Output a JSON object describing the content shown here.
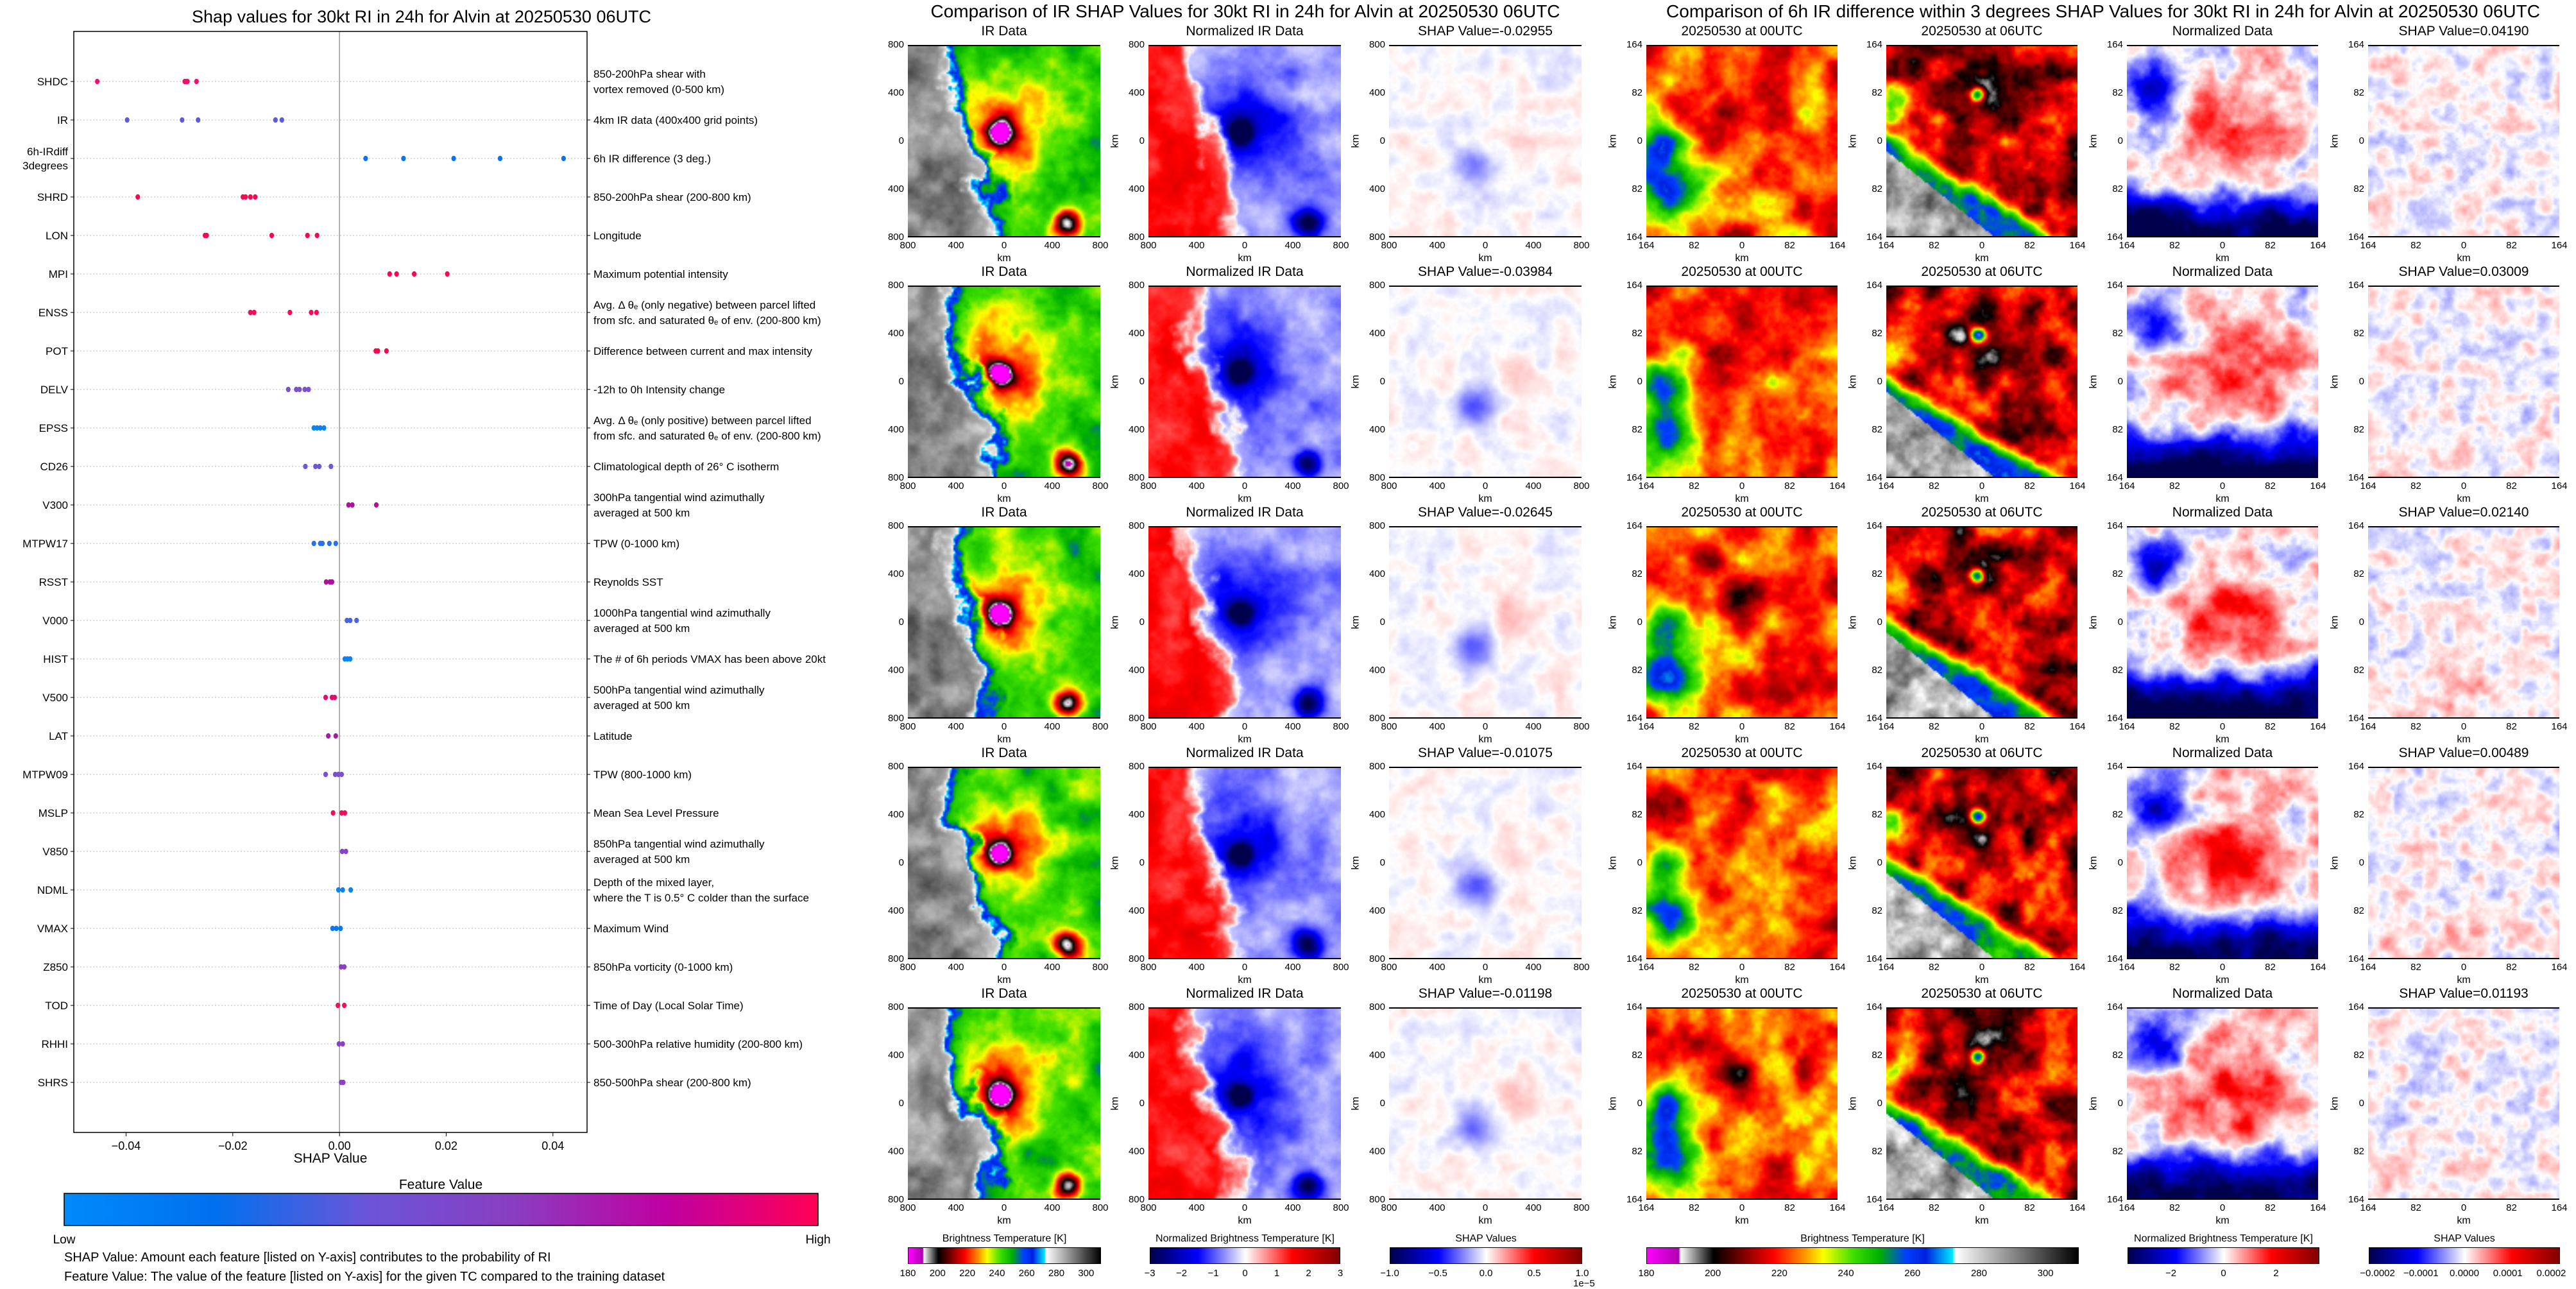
{
  "chart_data": {
    "type": "scatter",
    "title": "Shap values for 30kt RI in 24h for Alvin at 20250530 06UTC",
    "xlabel": "SHAP Value",
    "xlim": [
      -0.0498,
      0.0464
    ],
    "xticks": [
      -0.04,
      -0.02,
      0.0,
      0.02,
      0.04
    ],
    "xtick_labels": [
      "−0.04",
      "−0.02",
      "0.00",
      "0.02",
      "0.04"
    ],
    "grid": "horizontal dotted",
    "features": [
      {
        "code": [
          "SHDC"
        ],
        "description": [
          "850-200hPa shear with",
          "vortex removed (0-500 km)"
        ],
        "color": "#f0106a",
        "shap": [
          -0.0454,
          -0.029,
          -0.0287,
          -0.0285,
          -0.0268
        ]
      },
      {
        "code": [
          "IR"
        ],
        "description": [
          "4km IR data (400x400 grid points)"
        ],
        "color": "#5a5ce0",
        "shap": [
          -0.0398,
          -0.0295,
          -0.0265,
          -0.012,
          -0.0108
        ]
      },
      {
        "code": [
          "6h-IRdiff",
          "3degrees"
        ],
        "description": [
          "6h IR difference (3 deg.)"
        ],
        "color": "#0a74f0",
        "shap": [
          0.0049,
          0.012,
          0.0214,
          0.0301,
          0.042
        ]
      },
      {
        "code": [
          "SHRD"
        ],
        "description": [
          "850-200hPa shear (200-800 km)"
        ],
        "color": "#f8084e",
        "shap": [
          -0.0378,
          -0.0181,
          -0.0176,
          -0.0167,
          -0.0158
        ]
      },
      {
        "code": [
          "LON"
        ],
        "description": [
          "Longitude"
        ],
        "color": "#fa0650",
        "shap": [
          -0.0252,
          -0.0249,
          -0.0127,
          -0.006,
          -0.0042
        ]
      },
      {
        "code": [
          "MPI"
        ],
        "description": [
          "Maximum potential intensity"
        ],
        "color": "#fa0650",
        "shap": [
          0.0094,
          0.0107,
          0.014,
          0.0202
        ]
      },
      {
        "code": [
          "ENSS"
        ],
        "description": [
          "Avg. Δ θₑ (only negative) between parcel lifted",
          "from sfc. and saturated θₑ of env. (200-800 km)"
        ],
        "color": "#f80a58",
        "shap": [
          -0.0167,
          -0.016,
          -0.0093,
          -0.0053,
          -0.0043
        ]
      },
      {
        "code": [
          "POT"
        ],
        "description": [
          "Difference between current and max intensity"
        ],
        "color": "#fa0650",
        "shap": [
          0.0068,
          0.0072,
          0.0088
        ]
      },
      {
        "code": [
          "DELV"
        ],
        "description": [
          "-12h to 0h Intensity change"
        ],
        "color": "#7a4fd0",
        "shap": [
          -0.0096,
          -0.0081,
          -0.0075,
          -0.0065,
          -0.0058
        ]
      },
      {
        "code": [
          "EPSS"
        ],
        "description": [
          "Avg. Δ θₑ (only positive) between parcel lifted",
          "from sfc. and saturated θₑ of env. (200-800 km)"
        ],
        "color": "#0a84f5",
        "shap": [
          -0.0048,
          -0.0042,
          -0.0036,
          -0.0029
        ]
      },
      {
        "code": [
          "CD26"
        ],
        "description": [
          "Climatological depth of 26° C isotherm"
        ],
        "color": "#6a5ad8",
        "shap": [
          -0.0064,
          -0.0045,
          -0.0038,
          -0.0016
        ]
      },
      {
        "code": [
          "V300"
        ],
        "description": [
          "300hPa tangential wind azimuthally",
          "averaged at 500 km"
        ],
        "color": "#b0109a",
        "shap": [
          0.0017,
          0.0024,
          0.0069
        ]
      },
      {
        "code": [
          "MTPW17"
        ],
        "description": [
          "TPW (0-1000 km)"
        ],
        "color": "#2a70e8",
        "shap": [
          -0.0048,
          -0.0036,
          -0.0032,
          -0.0019,
          -0.0007
        ]
      },
      {
        "code": [
          "RSST"
        ],
        "description": [
          "Reynolds SST"
        ],
        "color": "#b0109a",
        "shap": [
          -0.0025,
          -0.0018,
          -0.0014
        ]
      },
      {
        "code": [
          "V000"
        ],
        "description": [
          "1000hPa tangential wind azimuthally",
          "averaged at 500 km"
        ],
        "color": "#4a62dc",
        "shap": [
          0.0014,
          0.002,
          0.0032
        ]
      },
      {
        "code": [
          "HIST"
        ],
        "description": [
          "The # of 6h periods VMAX has been above 20kt"
        ],
        "color": "#0a84f5",
        "shap": [
          0.001,
          0.0015,
          0.002
        ]
      },
      {
        "code": [
          "V500"
        ],
        "description": [
          "500hPa tangential wind azimuthally",
          "averaged at 500 km"
        ],
        "color": "#e0106a",
        "shap": [
          -0.0026,
          -0.0014,
          -0.0009
        ]
      },
      {
        "code": [
          "LAT"
        ],
        "description": [
          "Latitude"
        ],
        "color": "#a020a0",
        "shap": [
          -0.0021,
          -0.0007
        ]
      },
      {
        "code": [
          "MTPW09"
        ],
        "description": [
          "TPW (800-1000 km)"
        ],
        "color": "#7a4fd0",
        "shap": [
          -0.0026,
          -0.0008,
          -0.0002,
          0.0004
        ]
      },
      {
        "code": [
          "MSLP"
        ],
        "description": [
          "Mean Sea Level Pressure"
        ],
        "color": "#f0105a",
        "shap": [
          -0.0012,
          0.0004,
          0.001
        ]
      },
      {
        "code": [
          "V850"
        ],
        "description": [
          "850hPa tangential wind azimuthally",
          "averaged at 500 km"
        ],
        "color": "#8a40c8",
        "shap": [
          0.0005,
          0.0012
        ]
      },
      {
        "code": [
          "NDML"
        ],
        "description": [
          "Depth of the mixed layer,",
          "where the T is 0.5° C colder than the surface"
        ],
        "color": "#0a84f5",
        "shap": [
          -0.0002,
          0.0006,
          0.0021
        ]
      },
      {
        "code": [
          "VMAX"
        ],
        "description": [
          "Maximum Wind"
        ],
        "color": "#0a78f0",
        "shap": [
          -0.0013,
          -0.0006,
          0.0002
        ]
      },
      {
        "code": [
          "Z850"
        ],
        "description": [
          "850hPa vorticity (0-1000 km)"
        ],
        "color": "#8a40c8",
        "shap": [
          0.0003,
          0.0009
        ]
      },
      {
        "code": [
          "TOD"
        ],
        "description": [
          "Time of Day (Local Solar Time)"
        ],
        "color": "#f0105a",
        "shap": [
          -0.0003,
          0.0009
        ]
      },
      {
        "code": [
          "RHHI"
        ],
        "description": [
          "500-300hPa relative humidity (200-800 km)"
        ],
        "color": "#8a40c8",
        "shap": [
          -0.0001,
          0.0006
        ]
      },
      {
        "code": [
          "SHRS"
        ],
        "description": [
          "850-500hPa shear (200-800 km)"
        ],
        "color": "#8a40c8",
        "shap": [
          0.0003,
          0.0007
        ]
      }
    ],
    "colorbar": {
      "title": "Feature Value",
      "low": "Low",
      "high": "High",
      "colors": [
        "#008afb",
        "#0070ee",
        "#6a55d8",
        "#8a3dc0",
        "#c000a0",
        "#ff0055"
      ]
    },
    "notes": [
      "SHAP Value: Amount each feature [listed on Y-axis] contributes to the probability of RI",
      "Feature Value: The value of the feature [listed on Y-axis] for the given TC compared to the training dataset"
    ]
  },
  "ir_section": {
    "title": "Comparison of IR SHAP Values for 30kt RI in 24h for Alvin at 20250530 06UTC",
    "axis_label": "km",
    "ticks": [
      "800",
      "400",
      "0",
      "400",
      "800"
    ],
    "columns": [
      {
        "title": "IR Data",
        "field": "ir",
        "ylabel": false
      },
      {
        "title": "Normalized IR Data",
        "field": "norm",
        "ylabel": true
      },
      {
        "title": "SHAP Value",
        "field": "shap",
        "ylabel": true
      }
    ],
    "shap_values": [
      "-0.02955",
      "-0.03984",
      "-0.02645",
      "-0.01075",
      "-0.01198"
    ]
  },
  "diff_section": {
    "title": "Comparison of 6h IR difference within 3 degrees SHAP Values for 30kt RI in 24h for Alvin at 20250530 06UTC",
    "axis_label": "km",
    "ticks": [
      "164",
      "82",
      "0",
      "82",
      "164"
    ],
    "columns": [
      {
        "title": "20250530 at 00UTC",
        "field": "t00",
        "ylabel": true
      },
      {
        "title": "20250530 at 06UTC",
        "field": "t06",
        "ylabel": true
      },
      {
        "title": "Normalized Data",
        "field": "ndiff",
        "ylabel": true
      },
      {
        "title": "SHAP Value",
        "field": "dshap",
        "ylabel": true
      }
    ],
    "shap_values": [
      "0.04190",
      "0.03009",
      "0.02140",
      "0.00489",
      "0.01193"
    ]
  },
  "colorbars": [
    {
      "label": "Brightness Temperature [K]",
      "cmap": "ir",
      "range": [
        180,
        310
      ],
      "ticks": [
        180,
        200,
        220,
        240,
        260,
        280,
        300
      ],
      "tick_labels": [
        "180",
        "200",
        "220",
        "240",
        "260",
        "280",
        "300"
      ]
    },
    {
      "label": "Normalized Brightness Temperature [K]",
      "cmap": "seismic",
      "range": [
        -3,
        3
      ],
      "ticks": [
        -3,
        -2,
        -1,
        0,
        1,
        2,
        3
      ],
      "tick_labels": [
        "−3",
        "−2",
        "−1",
        "0",
        "1",
        "2",
        "3"
      ]
    },
    {
      "label": "SHAP Values",
      "cmap": "seismic",
      "range": [
        -1,
        1
      ],
      "ticks": [
        -1,
        -0.5,
        0,
        0.5,
        1
      ],
      "tick_labels": [
        "−1.0",
        "−0.5",
        "0.0",
        "0.5",
        "1.0"
      ],
      "scale_label": "1e−5"
    },
    {
      "label": "Brightness Temperature [K]",
      "cmap": "ir",
      "range": [
        180,
        310
      ],
      "ticks": [
        180,
        200,
        220,
        240,
        260,
        280,
        300
      ],
      "tick_labels": [
        "180",
        "200",
        "220",
        "240",
        "260",
        "280",
        "300"
      ]
    },
    {
      "label": "Normalized Brightness Temperature [K]",
      "cmap": "seismic",
      "range": [
        -3.65,
        3.65
      ],
      "ticks": [
        -2,
        0,
        2
      ],
      "tick_labels": [
        "−2",
        "0",
        "2"
      ]
    },
    {
      "label": "SHAP Values",
      "cmap": "seismic",
      "range": [
        -0.00022,
        0.00022
      ],
      "ticks": [
        -0.0002,
        -0.0001,
        0,
        0.0001,
        0.0002
      ],
      "tick_labels": [
        "−0.0002",
        "−0.0001",
        "0.0000",
        "0.0001",
        "0.0002"
      ]
    }
  ]
}
